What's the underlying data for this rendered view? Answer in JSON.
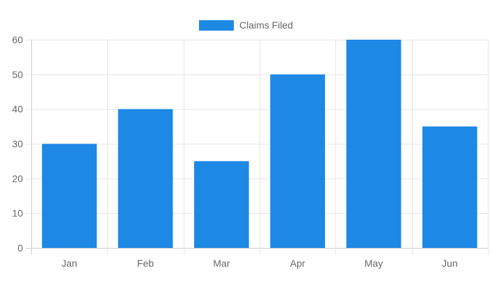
{
  "chart_data": {
    "type": "bar",
    "categories": [
      "Jan",
      "Feb",
      "Mar",
      "Apr",
      "May",
      "Jun"
    ],
    "series": [
      {
        "name": "Claims Filed",
        "values": [
          30,
          40,
          25,
          50,
          60,
          35
        ],
        "color": "#1e88e5"
      }
    ],
    "ylim": [
      0,
      60
    ],
    "yticks": [
      0,
      10,
      20,
      30,
      40,
      50,
      60
    ],
    "grid": true,
    "legend_position": "top-center"
  }
}
